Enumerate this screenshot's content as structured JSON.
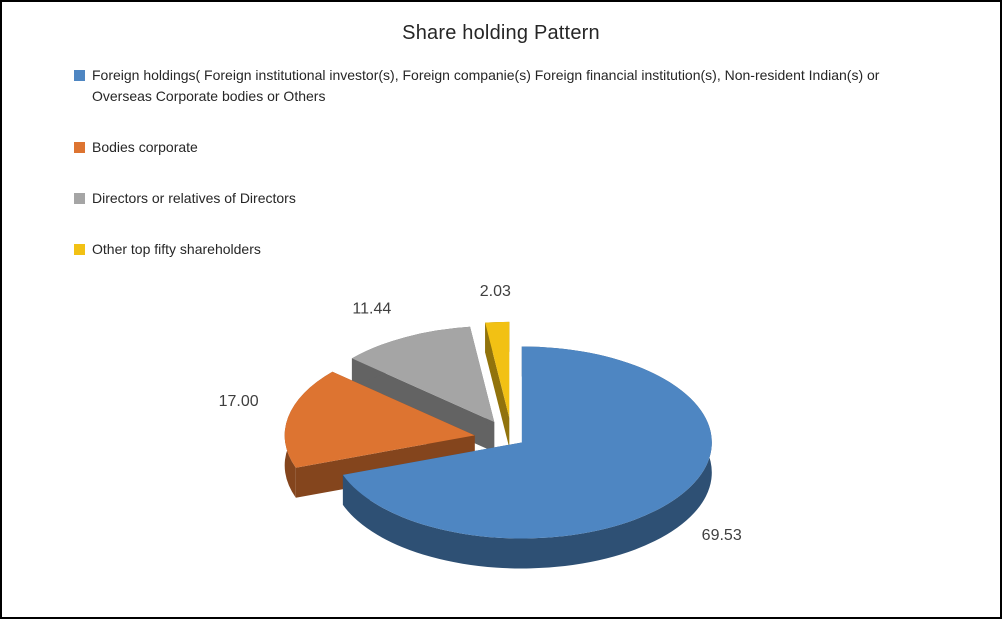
{
  "chart_data": {
    "type": "pie",
    "effect": "3d-exploded",
    "title": "Share holding Pattern",
    "legend_position": "top-left",
    "labels": [
      "Foreign holdings( Foreign institutional investor(s), Foreign companie(s) Foreign financial institution(s), Non-resident Indian(s) or Overseas Corporate bodies or Others",
      "Bodies corporate",
      "Directors or relatives of Directors",
      "Other top fifty shareholders"
    ],
    "values": [
      69.53,
      17,
      11.44,
      2.03
    ],
    "value_labels": [
      "69.53",
      "17.00",
      "11.44",
      "2.03"
    ],
    "colors": [
      "#4e86c2",
      "#dd7431",
      "#a5a5a5",
      "#f2c114"
    ],
    "label_color": "#3f3f3f",
    "title_color": "#262626"
  }
}
